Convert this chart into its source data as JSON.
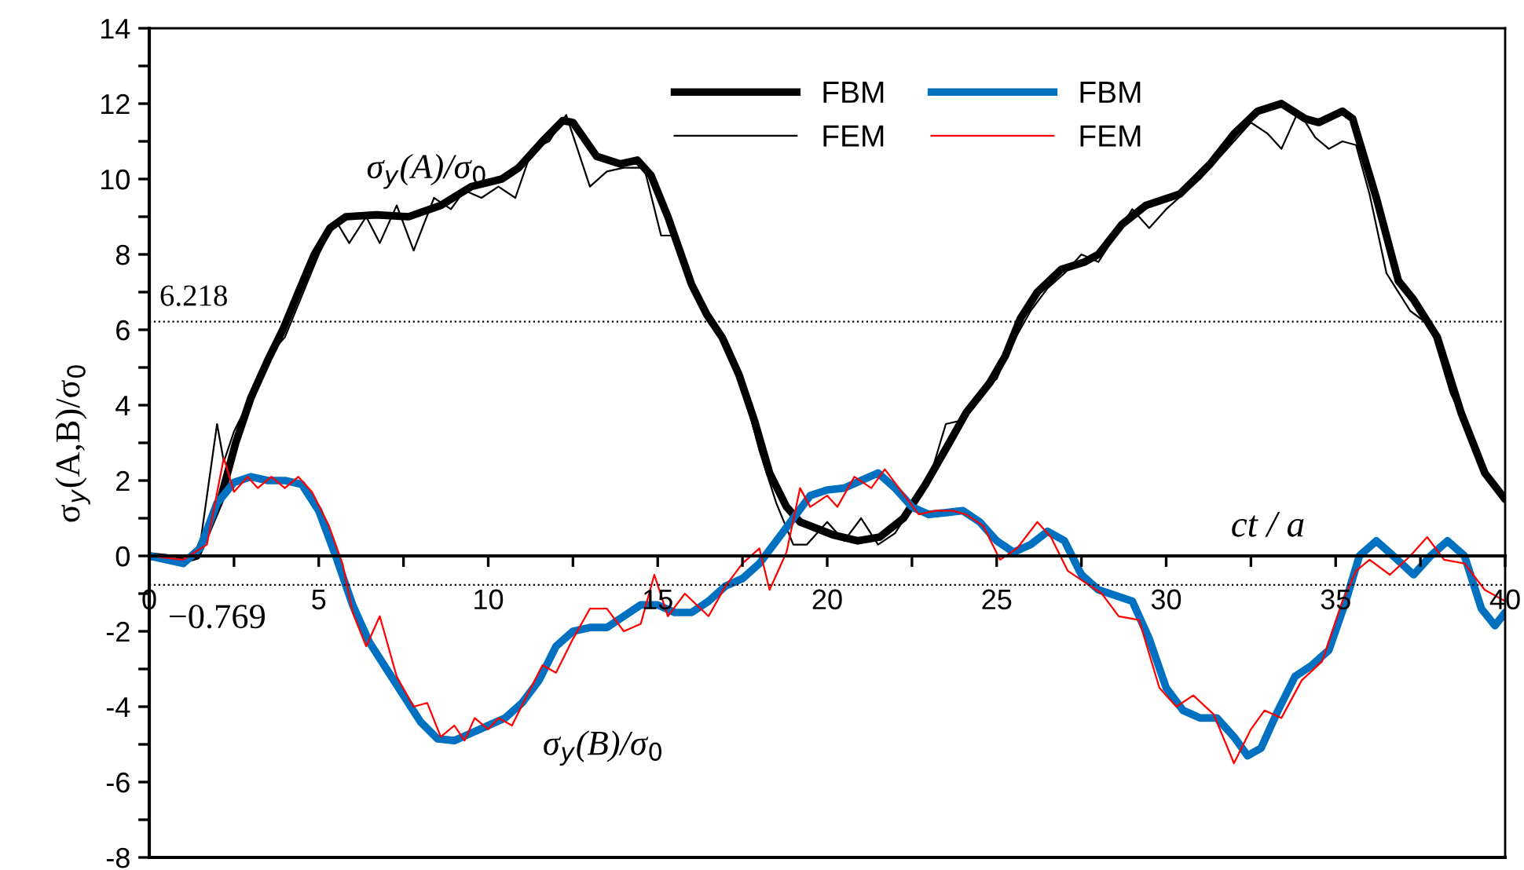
{
  "chart_data": {
    "type": "line",
    "ylabel": "σ$_{y}$(A,B)/σ$_{0}$",
    "xlabel": "ct / a",
    "annotations": [
      "σ$_{y}$(A)/σ$_{0}$",
      "σ$_{y}$(B)/σ$_{0}$"
    ],
    "xlim": [
      0,
      40
    ],
    "ylim": [
      -8,
      14
    ],
    "xticks": [
      0,
      {
        "value": 2.5,
        "label": null
      },
      5,
      {
        "value": 7.5,
        "label": null
      },
      10,
      {
        "value": 12.5,
        "label": null
      },
      15,
      {
        "value": 17.5,
        "label": null
      },
      20,
      {
        "value": 22.5,
        "label": null
      },
      25,
      {
        "value": 27.5,
        "label": null
      },
      30,
      {
        "value": 32.5,
        "label": null
      },
      35,
      {
        "value": 37.5,
        "label": null
      },
      40
    ],
    "yticks": [
      -8,
      {
        "value": -7,
        "label": null
      },
      -6,
      {
        "value": -5,
        "label": null
      },
      -4,
      {
        "value": -3,
        "label": null
      },
      -2,
      {
        "value": -1,
        "label": null
      },
      0,
      {
        "value": 1,
        "label": null
      },
      2,
      {
        "value": 3,
        "label": null
      },
      4,
      {
        "value": 5,
        "label": null
      },
      6,
      {
        "value": 7,
        "label": null
      },
      8,
      {
        "value": 9,
        "label": null
      },
      10,
      {
        "value": 11,
        "label": null
      },
      12,
      {
        "value": 13,
        "label": null
      },
      14
    ],
    "grid": false,
    "legend": "top",
    "marker": "none",
    "ref_lines": [
      {
        "axis": "y",
        "value": 6.218,
        "label": "6.218",
        "line_style": "dotted",
        "color": "#000000"
      },
      {
        "axis": "y",
        "value": -0.769,
        "label": "−0.769",
        "line_style": "dotted",
        "color": "#000000"
      }
    ],
    "series": [
      {
        "name": "FBM",
        "color": "#000000",
        "x": [
          0,
          1,
          1.4,
          2.1,
          2.55,
          3,
          3.5,
          3.94,
          4.4,
          4.87,
          5.33,
          5.8,
          6.7,
          7.65,
          8.6,
          9.5,
          10.4,
          10.9,
          11.6,
          12.2,
          12.5,
          13.2,
          13.9,
          14.4,
          14.8,
          15.3,
          16,
          16.45,
          16.9,
          17.4,
          17.85,
          18.3,
          18.8,
          19.2,
          20.2,
          20.9,
          21.55,
          22.25,
          22.9,
          23.6,
          24.1,
          24.8,
          25.25,
          25.7,
          26.2,
          26.9,
          27.6,
          28,
          28.7,
          29.4,
          30.4,
          31.3,
          32,
          32.7,
          33.4,
          34.1,
          34.5,
          35.2,
          35.5,
          36.2,
          36.85,
          37.3,
          38,
          38.7,
          39.4,
          40
        ],
        "values": [
          0,
          -0.1,
          0,
          1.5,
          3,
          4.2,
          5.2,
          6,
          7,
          8,
          8.7,
          9,
          9.05,
          9,
          9.3,
          9.8,
          10,
          10.3,
          11,
          11.55,
          11.5,
          10.6,
          10.4,
          10.5,
          10.1,
          9,
          7.2,
          6.4,
          5.8,
          4.8,
          3.6,
          2.2,
          1.3,
          0.9,
          0.55,
          0.4,
          0.5,
          1,
          1.9,
          3,
          3.8,
          4.6,
          5.3,
          6.3,
          7,
          7.6,
          7.8,
          8,
          8.8,
          9.3,
          9.6,
          10.4,
          11.2,
          11.8,
          12,
          11.6,
          11.5,
          11.8,
          11.6,
          9.5,
          7.3,
          6.8,
          5.8,
          3.8,
          2.2,
          1.5
        ]
      },
      {
        "name": "FEM",
        "color": "#000000",
        "x": [
          0,
          1,
          1.5,
          2,
          2.2,
          2.5,
          3,
          3.5,
          4,
          4.5,
          5,
          5.5,
          5.9,
          6.4,
          6.8,
          7.3,
          7.8,
          8.4,
          8.9,
          9.3,
          9.8,
          10.3,
          10.8,
          11.3,
          11.8,
          12.3,
          13,
          13.5,
          14,
          14.6,
          15.1,
          15.5,
          16.1,
          16.5,
          17,
          17.5,
          18,
          18.5,
          19,
          19.4,
          20,
          20.5,
          21,
          21.5,
          22,
          22.5,
          23,
          23.5,
          24,
          24.5,
          25,
          25.5,
          26,
          26.5,
          27,
          27.5,
          28,
          28.5,
          29,
          29.5,
          30,
          30.5,
          31,
          31.5,
          32,
          32.5,
          33,
          33.4,
          33.9,
          34.4,
          34.8,
          35.2,
          35.6,
          36,
          36.5,
          37.2,
          37.8,
          38.4,
          39,
          39.5,
          40
        ],
        "values": [
          0,
          -0.1,
          0.3,
          3.5,
          2.5,
          3.3,
          4.2,
          5.3,
          5.8,
          6.9,
          8,
          8.9,
          8.3,
          9,
          8.3,
          9.3,
          8.1,
          9.5,
          9.2,
          9.7,
          9.5,
          9.8,
          9.5,
          10.8,
          11,
          11.7,
          9.8,
          10.2,
          10.3,
          10.3,
          8.5,
          8.5,
          7,
          6.3,
          5.5,
          4.5,
          2.8,
          1.4,
          0.3,
          0.3,
          0.9,
          0.4,
          1,
          0.3,
          0.6,
          1.3,
          2,
          3.5,
          3.6,
          4.3,
          4.7,
          5.7,
          6.5,
          7.1,
          7.5,
          8,
          7.8,
          8.5,
          9.2,
          8.7,
          9.2,
          9.6,
          10,
          10.5,
          11,
          11.5,
          11.2,
          10.8,
          11.8,
          11.1,
          10.8,
          11,
          10.9,
          9.6,
          7.5,
          6.5,
          6.1,
          4.3,
          3.2,
          2.1,
          1.5
        ]
      },
      {
        "name": "FBM",
        "color": "#0070c0",
        "x": [
          0,
          0.5,
          1,
          1.5,
          2,
          2.5,
          3,
          3.5,
          4,
          4.5,
          5,
          5.5,
          6,
          6.5,
          7,
          7.5,
          8,
          8.5,
          9,
          9.5,
          10,
          10.5,
          11,
          11.5,
          12,
          12.5,
          13,
          13.5,
          14,
          14.5,
          15,
          15.5,
          16,
          16.5,
          17,
          17.5,
          18,
          18.5,
          19,
          19.5,
          20,
          20.5,
          21,
          21.5,
          22,
          22.5,
          23,
          23.5,
          24,
          24.5,
          25,
          25.5,
          26,
          26.5,
          27,
          27.5,
          28,
          28.5,
          29,
          29.5,
          30,
          30.5,
          31,
          31.5,
          32,
          32.4,
          32.8,
          33.3,
          33.8,
          34.3,
          34.8,
          35.3,
          35.7,
          36.2,
          36.7,
          37.3,
          37.8,
          38.3,
          38.8,
          39.3,
          39.7,
          40
        ],
        "values": [
          0,
          -0.1,
          -0.2,
          0.2,
          1.4,
          1.95,
          2.1,
          2,
          2,
          1.9,
          1.2,
          0,
          -1.3,
          -2.3,
          -3,
          -3.7,
          -4.4,
          -4.85,
          -4.9,
          -4.7,
          -4.5,
          -4.3,
          -3.9,
          -3.3,
          -2.4,
          -2,
          -1.9,
          -1.9,
          -1.6,
          -1.3,
          -1.3,
          -1.5,
          -1.5,
          -1.2,
          -0.8,
          -0.6,
          -0.2,
          0.4,
          1,
          1.6,
          1.75,
          1.8,
          2,
          2.2,
          1.8,
          1.3,
          1.1,
          1.15,
          1.2,
          0.9,
          0.4,
          0.1,
          0.3,
          0.65,
          0.4,
          -0.5,
          -0.9,
          -1.05,
          -1.2,
          -2.2,
          -3.5,
          -4.1,
          -4.3,
          -4.3,
          -4.8,
          -5.3,
          -5.1,
          -4.1,
          -3.2,
          -2.9,
          -2.5,
          -1.2,
          0,
          0.4,
          0,
          -0.5,
          0,
          0.4,
          0,
          -1.4,
          -1.85,
          -1.5
        ]
      },
      {
        "name": "FEM",
        "color": "#ff0000",
        "x": [
          0,
          1,
          1.7,
          2.2,
          2.5,
          2.9,
          3.2,
          3.6,
          4,
          4.4,
          4.8,
          5.3,
          5.7,
          6,
          6.4,
          6.8,
          7.3,
          7.8,
          8.2,
          8.6,
          9,
          9.3,
          9.6,
          10,
          10.3,
          10.7,
          11.2,
          11.6,
          12,
          12.5,
          13,
          13.5,
          14,
          14.5,
          14.9,
          15.3,
          15.8,
          16.5,
          17,
          17.5,
          18,
          18.3,
          18.8,
          19.2,
          19.5,
          20,
          20.3,
          20.8,
          21.3,
          21.7,
          22.2,
          22.7,
          23.2,
          23.7,
          24.1,
          24.6,
          25.1,
          25.6,
          26.2,
          26.6,
          27.1,
          27.6,
          28.1,
          28.6,
          29.2,
          29.8,
          30.3,
          30.8,
          31.4,
          32,
          32.5,
          32.9,
          33.4,
          34,
          34.6,
          35.2,
          35.6,
          36,
          36.6,
          37.2,
          37.7,
          38.2,
          38.8,
          39.4,
          40
        ],
        "values": [
          0,
          -0.1,
          0.3,
          2.6,
          1.7,
          2.1,
          1.8,
          2.1,
          1.8,
          2.1,
          1.7,
          0.8,
          -0.2,
          -1.5,
          -2.4,
          -1.6,
          -3.2,
          -4,
          -3.9,
          -4.8,
          -4.5,
          -4.9,
          -4.3,
          -4.6,
          -4.3,
          -4.5,
          -3.6,
          -2.9,
          -3.1,
          -2.2,
          -1.4,
          -1.4,
          -2,
          -1.8,
          -0.5,
          -1.6,
          -1,
          -1.6,
          -0.8,
          -0.2,
          0.2,
          -0.9,
          0.1,
          1.8,
          1.3,
          1.6,
          1.3,
          2.1,
          1.8,
          2.3,
          1.7,
          1.1,
          1.2,
          1.2,
          1.1,
          0.8,
          -0.1,
          0.2,
          0.9,
          0.5,
          -0.4,
          -0.7,
          -1,
          -1.6,
          -1.7,
          -3.5,
          -4,
          -3.7,
          -4.2,
          -5.5,
          -4.6,
          -4.1,
          -4.3,
          -3.3,
          -2.8,
          -1.2,
          -0.4,
          -0.1,
          -0.5,
          0,
          0.5,
          -0.1,
          -0.2,
          -0.9,
          -1.2
        ]
      }
    ]
  }
}
